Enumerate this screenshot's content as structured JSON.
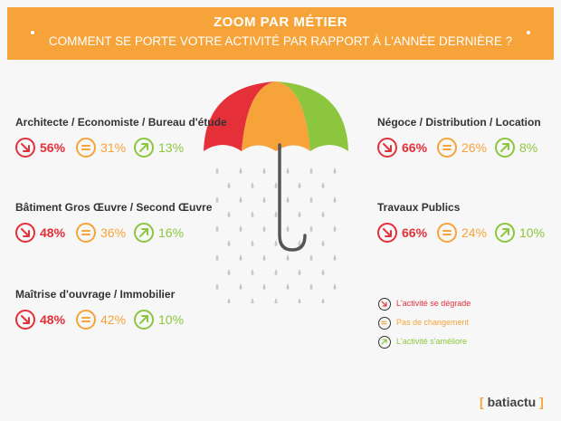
{
  "header": {
    "title": "ZOOM PAR MÉTIER",
    "subtitle": "COMMENT SE PORTE VOTRE ACTIVITÉ PAR RAPPORT À L'ANNÉE DERNIÈRE ?"
  },
  "colors": {
    "banner": "#f6a43a",
    "degrade": "#e5303a",
    "stable": "#f6a43a",
    "ameliore": "#8cc63e"
  },
  "chart_data": {
    "type": "table",
    "columns": [
      "L'activité se dégrade",
      "Pas de changement",
      "L'activité s'améliore"
    ],
    "rows": [
      {
        "name": "Architecte / Economiste / Bureau d'étude",
        "values": [
          "56%",
          "31%",
          "13%"
        ]
      },
      {
        "name": "Bâtiment Gros Œuvre / Second Œuvre",
        "values": [
          "48%",
          "36%",
          "16%"
        ]
      },
      {
        "name": "Maîtrise d'ouvrage / Immobilier",
        "values": [
          "48%",
          "42%",
          "10%"
        ]
      },
      {
        "name": "Négoce / Distribution / Location",
        "values": [
          "66%",
          "26%",
          "8%"
        ]
      },
      {
        "name": "Travaux Publics",
        "values": [
          "66%",
          "24%",
          "10%"
        ]
      }
    ]
  },
  "legend": {
    "degrade": "L'activité se dégrade",
    "stable": "Pas de changement",
    "ameliore": "L'activité s'améliore"
  },
  "icons": {
    "degrade": "arrow-down-right-icon",
    "stable": "equals-icon",
    "ameliore": "arrow-up-right-icon"
  },
  "logo": {
    "bracket_open": "[",
    "text": "batiactu",
    "bracket_close": "]"
  }
}
